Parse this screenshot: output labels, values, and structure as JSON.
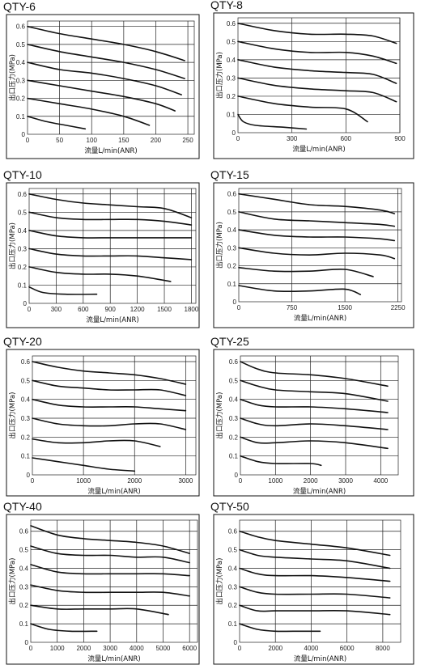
{
  "chart_data": [
    {
      "type": "line",
      "title": "QTY-6",
      "xlabel": "流量L/min(ANR)",
      "ylabel": "出口压力(MPa)",
      "xlim": [
        0,
        260
      ],
      "ylim": [
        0,
        0.63
      ],
      "xticks": [
        "0",
        "50",
        "100",
        "150",
        "200",
        "250"
      ],
      "xtick_values": [
        0,
        50,
        100,
        150,
        200,
        250
      ],
      "yticks": [
        "0",
        "0.1",
        "0.2",
        "0.3",
        "0.4",
        "0.5",
        "0.6"
      ],
      "series": [
        {
          "x": [
            0,
            50,
            100,
            150,
            200,
            245
          ],
          "y": [
            0.6,
            0.56,
            0.53,
            0.5,
            0.46,
            0.41
          ]
        },
        {
          "x": [
            0,
            50,
            100,
            150,
            200,
            245
          ],
          "y": [
            0.5,
            0.46,
            0.43,
            0.4,
            0.36,
            0.31
          ]
        },
        {
          "x": [
            0,
            50,
            100,
            150,
            200,
            240
          ],
          "y": [
            0.4,
            0.36,
            0.34,
            0.31,
            0.27,
            0.22
          ]
        },
        {
          "x": [
            0,
            50,
            100,
            150,
            200,
            230
          ],
          "y": [
            0.3,
            0.27,
            0.24,
            0.21,
            0.17,
            0.13
          ]
        },
        {
          "x": [
            0,
            50,
            100,
            150,
            190
          ],
          "y": [
            0.2,
            0.17,
            0.14,
            0.1,
            0.05
          ]
        },
        {
          "x": [
            0,
            30,
            60,
            90
          ],
          "y": [
            0.1,
            0.07,
            0.05,
            0.03
          ]
        }
      ]
    },
    {
      "type": "line",
      "title": "QTY-8",
      "xlabel": "流量L/min(ANR)",
      "ylabel": "出口压力(MPa)",
      "xlim": [
        0,
        900
      ],
      "ylim": [
        0,
        0.63
      ],
      "xticks": [
        "0",
        "300",
        "600",
        "900"
      ],
      "xtick_values": [
        0,
        300,
        600,
        900
      ],
      "yticks": [
        "0",
        "0.1",
        "0.2",
        "0.3",
        "0.4",
        "0.5",
        "0.6"
      ],
      "series": [
        {
          "x": [
            0,
            200,
            400,
            600,
            750,
            880
          ],
          "y": [
            0.6,
            0.56,
            0.54,
            0.54,
            0.53,
            0.49
          ]
        },
        {
          "x": [
            0,
            200,
            400,
            600,
            750,
            880
          ],
          "y": [
            0.5,
            0.46,
            0.44,
            0.44,
            0.42,
            0.38
          ]
        },
        {
          "x": [
            0,
            200,
            400,
            600,
            750,
            880
          ],
          "y": [
            0.4,
            0.36,
            0.34,
            0.33,
            0.32,
            0.27
          ]
        },
        {
          "x": [
            0,
            200,
            400,
            600,
            750,
            880
          ],
          "y": [
            0.3,
            0.26,
            0.24,
            0.23,
            0.22,
            0.17
          ]
        },
        {
          "x": [
            0,
            200,
            400,
            600,
            720
          ],
          "y": [
            0.2,
            0.16,
            0.14,
            0.13,
            0.06
          ]
        },
        {
          "x": [
            0,
            30,
            100,
            250,
            380
          ],
          "y": [
            0.1,
            0.06,
            0.04,
            0.03,
            0.02
          ]
        }
      ]
    },
    {
      "type": "line",
      "title": "QTY-10",
      "xlabel": "流量L/min(ANR)",
      "ylabel": "出口压力(MPa)",
      "xlim": [
        0,
        1850
      ],
      "ylim": [
        0,
        0.63
      ],
      "xticks": [
        "0",
        "300",
        "600",
        "900",
        "1200",
        "1500",
        "1800"
      ],
      "xtick_values": [
        0,
        300,
        600,
        900,
        1200,
        1500,
        1800
      ],
      "yticks": [
        "0",
        "0.1",
        "0.2",
        "0.3",
        "0.4",
        "0.5",
        "0.6"
      ],
      "series": [
        {
          "x": [
            0,
            300,
            600,
            900,
            1200,
            1500,
            1800
          ],
          "y": [
            0.6,
            0.57,
            0.55,
            0.54,
            0.53,
            0.52,
            0.47
          ]
        },
        {
          "x": [
            0,
            300,
            600,
            900,
            1200,
            1500,
            1800
          ],
          "y": [
            0.5,
            0.47,
            0.46,
            0.46,
            0.46,
            0.45,
            0.43
          ]
        },
        {
          "x": [
            0,
            300,
            600,
            900,
            1200,
            1500,
            1800
          ],
          "y": [
            0.4,
            0.37,
            0.36,
            0.36,
            0.36,
            0.36,
            0.36
          ]
        },
        {
          "x": [
            0,
            300,
            600,
            900,
            1200,
            1500,
            1800
          ],
          "y": [
            0.3,
            0.27,
            0.26,
            0.26,
            0.26,
            0.25,
            0.24
          ]
        },
        {
          "x": [
            0,
            300,
            600,
            900,
            1200,
            1570
          ],
          "y": [
            0.2,
            0.17,
            0.16,
            0.16,
            0.15,
            0.12
          ]
        },
        {
          "x": [
            0,
            150,
            400,
            750
          ],
          "y": [
            0.09,
            0.06,
            0.05,
            0.05
          ]
        }
      ]
    },
    {
      "type": "line",
      "title": "QTY-15",
      "xlabel": "流量L/min(ANR)",
      "ylabel": "出口压力(MPa)",
      "xlim": [
        0,
        2300
      ],
      "ylim": [
        0,
        0.63
      ],
      "xticks": [
        "0",
        "750",
        "1500",
        "2250"
      ],
      "xtick_values": [
        0,
        750,
        1500,
        2250
      ],
      "yticks": [
        "0",
        "0.1",
        "0.2",
        "0.3",
        "0.4",
        "0.5",
        "0.6"
      ],
      "series": [
        {
          "x": [
            0,
            500,
            1000,
            1500,
            2000,
            2200
          ],
          "y": [
            0.6,
            0.57,
            0.54,
            0.53,
            0.51,
            0.49
          ]
        },
        {
          "x": [
            0,
            500,
            1000,
            1500,
            2000,
            2200
          ],
          "y": [
            0.5,
            0.46,
            0.45,
            0.44,
            0.43,
            0.42
          ]
        },
        {
          "x": [
            0,
            500,
            1000,
            1500,
            2000,
            2200
          ],
          "y": [
            0.4,
            0.37,
            0.36,
            0.36,
            0.35,
            0.34
          ]
        },
        {
          "x": [
            0,
            500,
            1000,
            1500,
            2000,
            2200
          ],
          "y": [
            0.3,
            0.27,
            0.26,
            0.27,
            0.26,
            0.24
          ]
        },
        {
          "x": [
            0,
            500,
            1000,
            1500,
            1900
          ],
          "y": [
            0.19,
            0.17,
            0.17,
            0.18,
            0.14
          ]
        },
        {
          "x": [
            0,
            500,
            1000,
            1500,
            1720
          ],
          "y": [
            0.09,
            0.06,
            0.06,
            0.07,
            0.04
          ]
        }
      ]
    },
    {
      "type": "line",
      "title": "QTY-20",
      "xlabel": "流量L/min(ANR)",
      "ylabel": "出口压力(MPa)",
      "xlim": [
        0,
        3200
      ],
      "ylim": [
        0,
        0.63
      ],
      "xticks": [
        "0",
        "1000",
        "2000",
        "3000"
      ],
      "xtick_values": [
        0,
        1000,
        2000,
        3000
      ],
      "yticks": [
        "0",
        "0.1",
        "0.2",
        "0.3",
        "0.4",
        "0.5",
        "0.6"
      ],
      "series": [
        {
          "x": [
            0,
            500,
            1000,
            1500,
            2000,
            2500,
            3000
          ],
          "y": [
            0.6,
            0.57,
            0.55,
            0.54,
            0.53,
            0.51,
            0.48
          ]
        },
        {
          "x": [
            0,
            500,
            1000,
            1500,
            2000,
            2500,
            3000
          ],
          "y": [
            0.5,
            0.47,
            0.46,
            0.45,
            0.45,
            0.45,
            0.42
          ]
        },
        {
          "x": [
            0,
            500,
            1000,
            1500,
            2000,
            2500,
            3000
          ],
          "y": [
            0.4,
            0.37,
            0.36,
            0.36,
            0.36,
            0.35,
            0.34
          ]
        },
        {
          "x": [
            0,
            500,
            1000,
            1500,
            2000,
            2500,
            3000
          ],
          "y": [
            0.3,
            0.27,
            0.26,
            0.26,
            0.27,
            0.27,
            0.24
          ]
        },
        {
          "x": [
            0,
            500,
            1000,
            1500,
            2000,
            2500
          ],
          "y": [
            0.19,
            0.17,
            0.17,
            0.18,
            0.18,
            0.15
          ]
        },
        {
          "x": [
            0,
            500,
            1000,
            1500,
            2000
          ],
          "y": [
            0.09,
            0.07,
            0.05,
            0.03,
            0.02
          ]
        }
      ]
    },
    {
      "type": "line",
      "title": "QTY-25",
      "xlabel": "流量L/min(ANR)",
      "ylabel": "出口压力(MPa)",
      "xlim": [
        0,
        4500
      ],
      "ylim": [
        0,
        0.63
      ],
      "xticks": [
        "0",
        "1000",
        "2000",
        "3000",
        "4000"
      ],
      "xtick_values": [
        0,
        1000,
        2000,
        3000,
        4000
      ],
      "yticks": [
        "0",
        "0.1",
        "0.2",
        "0.3",
        "0.4",
        "0.5",
        "0.6"
      ],
      "series": [
        {
          "x": [
            0,
            500,
            1000,
            2000,
            3000,
            4200
          ],
          "y": [
            0.6,
            0.56,
            0.54,
            0.53,
            0.51,
            0.47
          ]
        },
        {
          "x": [
            0,
            500,
            1000,
            2000,
            3000,
            4200
          ],
          "y": [
            0.5,
            0.47,
            0.45,
            0.44,
            0.43,
            0.39
          ]
        },
        {
          "x": [
            0,
            500,
            1000,
            2000,
            3000,
            4200
          ],
          "y": [
            0.4,
            0.37,
            0.36,
            0.36,
            0.35,
            0.33
          ]
        },
        {
          "x": [
            0,
            500,
            1000,
            2000,
            3000,
            4200
          ],
          "y": [
            0.3,
            0.27,
            0.26,
            0.27,
            0.26,
            0.24
          ]
        },
        {
          "x": [
            0,
            500,
            1000,
            2000,
            3000,
            4200
          ],
          "y": [
            0.2,
            0.17,
            0.17,
            0.18,
            0.17,
            0.14
          ]
        },
        {
          "x": [
            0,
            500,
            1000,
            2000,
            2300
          ],
          "y": [
            0.1,
            0.07,
            0.06,
            0.06,
            0.05
          ]
        }
      ]
    },
    {
      "type": "line",
      "title": "QTY-40",
      "xlabel": "流量L/min(ANR)",
      "ylabel": "出口压力(MPa)",
      "xlim": [
        0,
        6300
      ],
      "ylim": [
        0,
        0.66
      ],
      "xticks": [
        "0",
        "1000",
        "2000",
        "3000",
        "4000",
        "5000",
        "6000"
      ],
      "xtick_values": [
        0,
        1000,
        2000,
        3000,
        4000,
        5000,
        6000
      ],
      "yticks": [
        "0",
        "0.1",
        "0.2",
        "0.3",
        "0.4",
        "0.5",
        "0.6"
      ],
      "series": [
        {
          "x": [
            0,
            1000,
            2000,
            3000,
            4000,
            5000,
            6000
          ],
          "y": [
            0.63,
            0.58,
            0.56,
            0.55,
            0.54,
            0.52,
            0.48
          ]
        },
        {
          "x": [
            0,
            1000,
            2000,
            3000,
            4000,
            5000,
            6000
          ],
          "y": [
            0.52,
            0.48,
            0.47,
            0.47,
            0.46,
            0.46,
            0.43
          ]
        },
        {
          "x": [
            0,
            1000,
            2000,
            3000,
            4000,
            5000,
            6000
          ],
          "y": [
            0.42,
            0.38,
            0.37,
            0.37,
            0.37,
            0.37,
            0.36
          ]
        },
        {
          "x": [
            0,
            1000,
            2000,
            3000,
            4000,
            5000,
            6000
          ],
          "y": [
            0.31,
            0.28,
            0.27,
            0.27,
            0.27,
            0.27,
            0.25
          ]
        },
        {
          "x": [
            0,
            1000,
            2000,
            3000,
            4000,
            5200
          ],
          "y": [
            0.2,
            0.18,
            0.18,
            0.18,
            0.18,
            0.15
          ]
        },
        {
          "x": [
            0,
            700,
            1500,
            2500
          ],
          "y": [
            0.1,
            0.07,
            0.06,
            0.06
          ]
        }
      ]
    },
    {
      "type": "line",
      "title": "QTY-50",
      "xlabel": "流量L/min(ANR)",
      "ylabel": "出口压力(MPa)",
      "xlim": [
        0,
        9000
      ],
      "ylim": [
        0,
        0.66
      ],
      "xticks": [
        "0",
        "2000",
        "4000",
        "6000",
        "8000"
      ],
      "xtick_values": [
        0,
        2000,
        4000,
        6000,
        8000
      ],
      "yticks": [
        "0",
        "0.1",
        "0.2",
        "0.3",
        "0.4",
        "0.5",
        "0.6"
      ],
      "series": [
        {
          "x": [
            0,
            1000,
            2000,
            4000,
            6000,
            8400
          ],
          "y": [
            0.6,
            0.57,
            0.55,
            0.53,
            0.51,
            0.47
          ]
        },
        {
          "x": [
            0,
            1000,
            2000,
            4000,
            6000,
            8400
          ],
          "y": [
            0.5,
            0.47,
            0.46,
            0.45,
            0.44,
            0.4
          ]
        },
        {
          "x": [
            0,
            1000,
            2000,
            4000,
            6000,
            8400
          ],
          "y": [
            0.4,
            0.37,
            0.36,
            0.36,
            0.35,
            0.33
          ]
        },
        {
          "x": [
            0,
            1000,
            2000,
            4000,
            6000,
            8400
          ],
          "y": [
            0.3,
            0.27,
            0.26,
            0.26,
            0.26,
            0.24
          ]
        },
        {
          "x": [
            0,
            1000,
            2000,
            4000,
            6000,
            8400
          ],
          "y": [
            0.2,
            0.17,
            0.17,
            0.17,
            0.17,
            0.15
          ]
        },
        {
          "x": [
            0,
            1000,
            2000,
            3000,
            4500
          ],
          "y": [
            0.1,
            0.07,
            0.06,
            0.06,
            0.06
          ]
        }
      ]
    }
  ]
}
